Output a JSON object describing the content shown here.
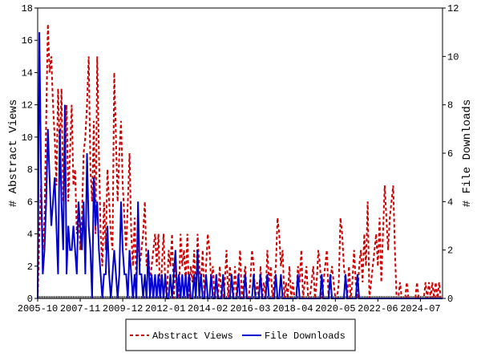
{
  "chart_data": {
    "type": "line",
    "y_label": "# Abstract Views",
    "y2_label": "# File Downloads",
    "x": [
      "2005-10",
      "2005-11",
      "2005-12",
      "2006-01",
      "2006-02",
      "2006-03",
      "2006-04",
      "2006-05",
      "2006-06",
      "2006-07",
      "2006-08",
      "2006-09",
      "2006-10",
      "2006-11",
      "2006-12",
      "2007-01",
      "2007-02",
      "2007-03",
      "2007-04",
      "2007-05",
      "2007-06",
      "2007-07",
      "2007-08",
      "2007-09",
      "2007-10",
      "2007-11",
      "2007-12",
      "2008-01",
      "2008-02",
      "2008-03",
      "2008-04",
      "2008-05",
      "2008-06",
      "2008-07",
      "2008-08",
      "2008-09",
      "2008-10",
      "2008-11",
      "2008-12",
      "2009-01",
      "2009-02",
      "2009-03",
      "2009-04",
      "2009-05",
      "2009-06",
      "2009-07",
      "2009-08",
      "2009-09",
      "2009-10",
      "2009-11",
      "2009-12",
      "2010-01",
      "2010-02",
      "2010-03",
      "2010-04",
      "2010-05",
      "2010-06",
      "2010-07",
      "2010-08",
      "2010-09",
      "2010-10",
      "2010-11",
      "2010-12",
      "2011-01",
      "2011-02",
      "2011-03",
      "2011-04",
      "2011-05",
      "2011-06",
      "2011-07",
      "2011-08",
      "2011-09",
      "2011-10",
      "2011-11",
      "2011-12",
      "2012-01",
      "2012-02",
      "2012-03",
      "2012-04",
      "2012-05",
      "2012-06",
      "2012-07",
      "2012-08",
      "2012-09",
      "2012-10",
      "2012-11",
      "2012-12",
      "2013-01",
      "2013-02",
      "2013-03",
      "2013-04",
      "2013-05",
      "2013-06",
      "2013-07",
      "2013-08",
      "2013-09",
      "2013-10",
      "2013-11",
      "2013-12",
      "2014-01",
      "2014-02",
      "2014-03",
      "2014-04",
      "2014-05",
      "2014-06",
      "2014-07",
      "2014-08",
      "2014-09",
      "2014-10",
      "2014-11",
      "2014-12",
      "2015-01",
      "2015-02",
      "2015-03",
      "2015-04",
      "2015-05",
      "2015-06",
      "2015-07",
      "2015-08",
      "2015-09",
      "2015-10",
      "2015-11",
      "2015-12",
      "2016-01",
      "2016-02",
      "2016-03",
      "2016-04",
      "2016-05",
      "2016-06",
      "2016-07",
      "2016-08",
      "2016-09",
      "2016-10",
      "2016-11",
      "2016-12",
      "2017-01",
      "2017-02",
      "2017-03",
      "2017-04",
      "2017-05",
      "2017-06",
      "2017-07",
      "2017-08",
      "2017-09",
      "2017-10",
      "2017-11",
      "2017-12",
      "2018-01",
      "2018-02",
      "2018-03",
      "2018-04",
      "2018-05",
      "2018-06",
      "2018-07",
      "2018-08",
      "2018-09",
      "2018-10",
      "2018-11",
      "2018-12",
      "2019-01",
      "2019-02",
      "2019-03",
      "2019-04",
      "2019-05",
      "2019-06",
      "2019-07",
      "2019-08",
      "2019-09",
      "2019-10",
      "2019-11",
      "2019-12",
      "2020-01",
      "2020-02",
      "2020-03",
      "2020-04",
      "2020-05",
      "2020-06",
      "2020-07",
      "2020-08",
      "2020-09",
      "2020-10",
      "2020-11",
      "2020-12",
      "2021-01",
      "2021-02",
      "2021-03",
      "2021-04",
      "2021-05",
      "2021-06",
      "2021-07",
      "2021-08",
      "2021-09",
      "2021-10",
      "2021-11",
      "2021-12",
      "2022-01",
      "2022-02",
      "2022-03",
      "2022-04",
      "2022-05",
      "2022-06",
      "2022-07",
      "2022-08",
      "2022-09",
      "2022-10",
      "2022-11",
      "2022-12",
      "2023-01",
      "2023-02",
      "2023-03",
      "2023-04",
      "2023-05",
      "2023-06",
      "2023-07",
      "2023-08",
      "2023-09",
      "2023-10",
      "2023-11",
      "2023-12",
      "2024-01",
      "2024-02",
      "2024-03",
      "2024-04",
      "2024-05",
      "2024-06",
      "2024-07",
      "2024-08",
      "2024-09",
      "2024-10",
      "2024-11",
      "2024-12",
      "2025-01",
      "2025-02",
      "2025-03",
      "2025-04",
      "2025-05",
      "2025-06",
      "2025-07",
      "2025-08"
    ],
    "xticks": [
      "2005-10",
      "2007-11",
      "2009-12",
      "2012-01",
      "2014-02",
      "2016-03",
      "2018-04",
      "2020-05",
      "2022-06",
      "2024-07"
    ],
    "ylim": [
      0,
      18
    ],
    "yticks": [
      0,
      2,
      4,
      6,
      8,
      10,
      12,
      14,
      16,
      18
    ],
    "y2lim": [
      0,
      12
    ],
    "y2ticks": [
      0,
      2,
      4,
      6,
      8,
      10,
      12
    ],
    "legend": "bottom",
    "series": [
      {
        "name": "Abstract Views",
        "color": "#cc0000",
        "line_style": "dashed",
        "axis": "y",
        "values": [
          0,
          4,
          7,
          3,
          5,
          11,
          17,
          14,
          15,
          12,
          10,
          7,
          13,
          9,
          13,
          6,
          8,
          12,
          6,
          9,
          12,
          7,
          8,
          4,
          6,
          3,
          5,
          9,
          10,
          12,
          15,
          8,
          6,
          11,
          4,
          15,
          9,
          4,
          2,
          6,
          3,
          8,
          6,
          4,
          3,
          14,
          10,
          6,
          9,
          11,
          7,
          5,
          3,
          6,
          9,
          4,
          2,
          5,
          1,
          4,
          2,
          3,
          4,
          6,
          2,
          3,
          1,
          2,
          3,
          4,
          2,
          4,
          0,
          2,
          4,
          1,
          0,
          3,
          2,
          4,
          0,
          2,
          1,
          0,
          4,
          2,
          3,
          1,
          4,
          0,
          2,
          1,
          3,
          0,
          4,
          2,
          1,
          3,
          0,
          2,
          4,
          3,
          1,
          2,
          0,
          1,
          0,
          2,
          0,
          0,
          1,
          3,
          0,
          2,
          1,
          0,
          2,
          0,
          1,
          3,
          0,
          1,
          2,
          0,
          0,
          1,
          3,
          2,
          0,
          1,
          0,
          2,
          0,
          1,
          0,
          3,
          1,
          2,
          0,
          1,
          2,
          5,
          4,
          2,
          3,
          0,
          1,
          0,
          2,
          0,
          1,
          0,
          0,
          2,
          1,
          3,
          0,
          1,
          2,
          0,
          0,
          1,
          2,
          0,
          1,
          3,
          2,
          0,
          1,
          2,
          3,
          0,
          1,
          2,
          1,
          0,
          0,
          1,
          5,
          4,
          2,
          1,
          0,
          2,
          0,
          1,
          3,
          1,
          0,
          2,
          3,
          1,
          4,
          2,
          6,
          0,
          1,
          2,
          3,
          4,
          2,
          5,
          1,
          4,
          7,
          5,
          3,
          5,
          6,
          7,
          3,
          0,
          0,
          1,
          0,
          0,
          0,
          1,
          0,
          0,
          0,
          0,
          0,
          1,
          0,
          0,
          0,
          0,
          1,
          0,
          1,
          0,
          1,
          0,
          1,
          0,
          1,
          0,
          0
        ]
      },
      {
        "name": "File Downloads",
        "color": "#0000cc",
        "line_style": "solid",
        "axis": "y2",
        "values": [
          0,
          11,
          5,
          1,
          2,
          4,
          7,
          5,
          3,
          4,
          5,
          3,
          1,
          7,
          4,
          2,
          8,
          1,
          3,
          2,
          2,
          3,
          2,
          1,
          4,
          3,
          2,
          4,
          1,
          6,
          3,
          2,
          0,
          5,
          3,
          4,
          2,
          1,
          0,
          1,
          1,
          3,
          1,
          0,
          1,
          2,
          1,
          0,
          1,
          4,
          2,
          1,
          1,
          0,
          2,
          1,
          0,
          1,
          0,
          4,
          1,
          1,
          0,
          1,
          0,
          2,
          0,
          1,
          0,
          1,
          0,
          1,
          0,
          1,
          0,
          1,
          0,
          0,
          1,
          0,
          1,
          2,
          0,
          1,
          0,
          1,
          0,
          1,
          0,
          1,
          0,
          0,
          1,
          0,
          2,
          0,
          1,
          0,
          0,
          1,
          0,
          0,
          1,
          0,
          0,
          1,
          0,
          0,
          0,
          1,
          0,
          0,
          0,
          0,
          1,
          0,
          0,
          0,
          1,
          0,
          0,
          0,
          1,
          0,
          0,
          0,
          0,
          1,
          0,
          0,
          0,
          1,
          0,
          0,
          0,
          1,
          0,
          0,
          0,
          0,
          1,
          0,
          0,
          1,
          0,
          0,
          0,
          0,
          0,
          0,
          0,
          0,
          0,
          1,
          0,
          0,
          0,
          0,
          0,
          0,
          0,
          0,
          0,
          0,
          0,
          0,
          0,
          1,
          0,
          0,
          0,
          0,
          1,
          0,
          0,
          0,
          0,
          0,
          0,
          0,
          0,
          1,
          0,
          0,
          0,
          0,
          0,
          0,
          1,
          0,
          0,
          0,
          0,
          0,
          0,
          0,
          0,
          0,
          0,
          0,
          0,
          0,
          0,
          0,
          0,
          0,
          0,
          0,
          0,
          0,
          0,
          0,
          0,
          0,
          0,
          0,
          0,
          0,
          0,
          0,
          0,
          0,
          0,
          0,
          0,
          0,
          0,
          0,
          0,
          0,
          0,
          0,
          0,
          0,
          0,
          0,
          0,
          0,
          0
        ]
      }
    ]
  }
}
